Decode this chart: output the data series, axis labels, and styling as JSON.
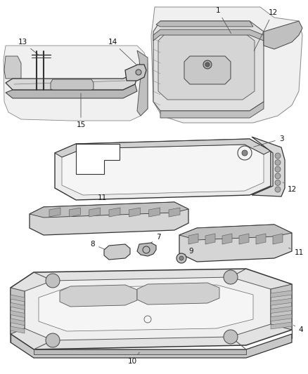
{
  "bg_color": "#ffffff",
  "line_color": "#2a2a2a",
  "label_color": "#111111",
  "fig_width": 4.38,
  "fig_height": 5.33,
  "dpi": 100,
  "gray_light": "#e8e8e8",
  "gray_mid": "#c8c8c8",
  "gray_dark": "#999999",
  "font_size": 7.5
}
